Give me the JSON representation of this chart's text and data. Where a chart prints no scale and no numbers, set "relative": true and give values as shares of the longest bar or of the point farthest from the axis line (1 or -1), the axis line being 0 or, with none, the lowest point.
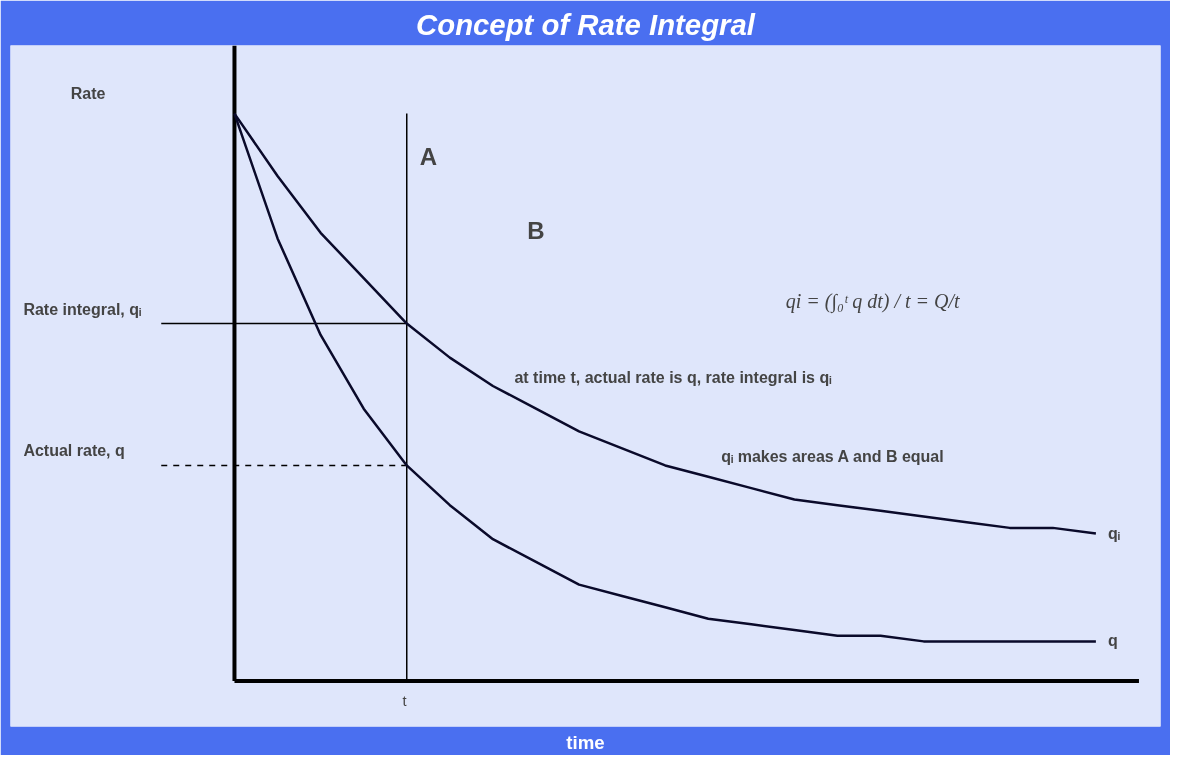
{
  "chart_data": {
    "type": "line",
    "title": "Concept of Rate Integral",
    "xlabel": "time",
    "relative": true,
    "categories": [
      null,
      null,
      null,
      null,
      null,
      null,
      null,
      null,
      null,
      null,
      null,
      null,
      null,
      null,
      null,
      null,
      null,
      null,
      null,
      null,
      null
    ],
    "series": [
      {
        "name": "qᵢ",
        "color": "#0a0a2a",
        "values": [
          1.0,
          0.89,
          0.79,
          0.71,
          0.63,
          0.57,
          0.52,
          0.48,
          0.44,
          0.41,
          0.38,
          0.36,
          0.34,
          0.32,
          0.31,
          0.3,
          0.29,
          0.28,
          0.27,
          0.27,
          0.26
        ]
      },
      {
        "name": "q",
        "color": "#0a0a2a",
        "values": [
          1.0,
          0.78,
          0.61,
          0.48,
          0.38,
          0.31,
          0.25,
          0.21,
          0.17,
          0.15,
          0.13,
          0.11,
          0.1,
          0.09,
          0.08,
          0.08,
          0.07,
          0.07,
          0.07,
          0.07,
          0.07
        ]
      }
    ],
    "ref_lines": [
      {
        "axis": "y",
        "value": 0.63,
        "label": "Rate integral, qᵢ",
        "line_style": "solid"
      },
      {
        "axis": "y",
        "value": 0.38,
        "label": "Actual rate, q",
        "line_style": "dashed"
      }
    ],
    "annotations": [
      "Rate",
      "t",
      "A",
      "B",
      "qi = (∫₀ᵗ q dt) / t = Q/t",
      "at time t, actual rate is q, rate integral is qᵢ",
      "qᵢ makes areas A and B equal"
    ],
    "grid": false,
    "line_style": "solid",
    "marker": "none"
  }
}
